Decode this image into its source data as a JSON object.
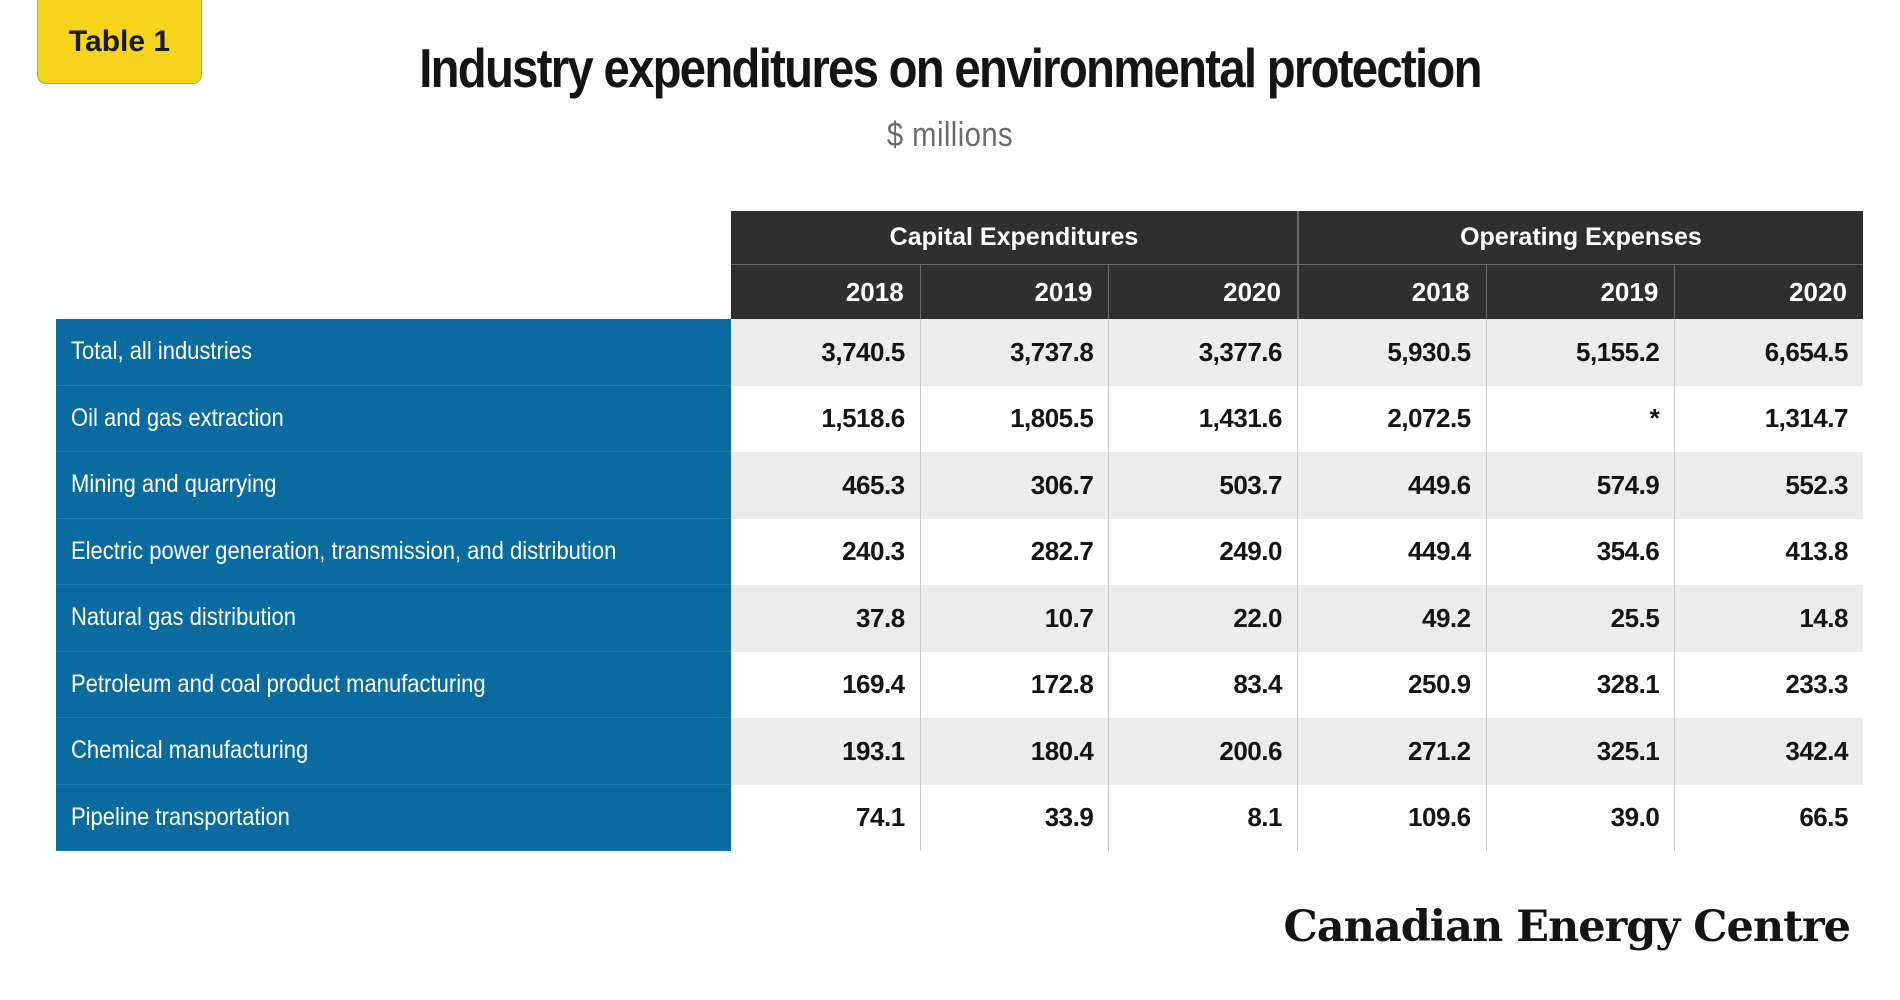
{
  "badge": "Table 1",
  "title": "Industry expenditures on environmental protection",
  "subtitle": "$ millions",
  "groups": [
    "Capital Expenditures",
    "Operating Expenses"
  ],
  "years": [
    "2018",
    "2019",
    "2020",
    "2018",
    "2019",
    "2020"
  ],
  "rows": [
    {
      "label": "Total, all industries",
      "values": [
        "3,740.5",
        "3,737.8",
        "3,377.6",
        "5,930.5",
        "5,155.2",
        "6,654.5"
      ]
    },
    {
      "label": "Oil and gas extraction",
      "values": [
        "1,518.6",
        "1,805.5",
        "1,431.6",
        "2,072.5",
        "*",
        "1,314.7"
      ]
    },
    {
      "label": "Mining and quarrying",
      "values": [
        "465.3",
        "306.7",
        "503.7",
        "449.6",
        "574.9",
        "552.3"
      ]
    },
    {
      "label": "Electric power generation, transmission, and distribution",
      "values": [
        "240.3",
        "282.7",
        "249.0",
        "449.4",
        "354.6",
        "413.8"
      ]
    },
    {
      "label": "Natural gas distribution",
      "values": [
        "37.8",
        "10.7",
        "22.0",
        "49.2",
        "25.5",
        "14.8"
      ]
    },
    {
      "label": "Petroleum and coal product manufacturing",
      "values": [
        "169.4",
        "172.8",
        "83.4",
        "250.9",
        "328.1",
        "233.3"
      ]
    },
    {
      "label": "Chemical manufacturing",
      "values": [
        "193.1",
        "180.4",
        "200.6",
        "271.2",
        "325.1",
        "342.4"
      ]
    },
    {
      "label": "Pipeline transportation",
      "values": [
        "74.1",
        "33.9",
        "8.1",
        "109.6",
        "39.0",
        "66.5"
      ]
    }
  ],
  "logo": "Canadian Energy Centre",
  "colors": {
    "badge": "#f6d31c",
    "header": "#2f2f2f",
    "row_label": "#0a6ba0",
    "stripe": "#ececec"
  }
}
